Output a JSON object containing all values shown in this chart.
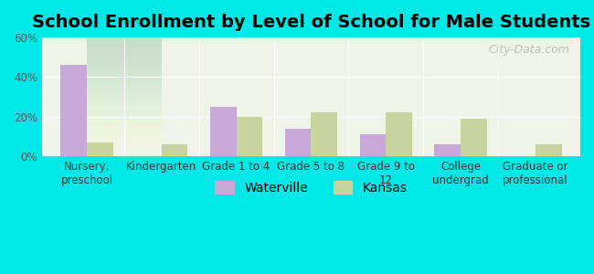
{
  "title": "School Enrollment by Level of School for Male Students",
  "categories": [
    "Nursery,\npreschool",
    "Kindergarten",
    "Grade 1 to 4",
    "Grade 5 to 8",
    "Grade 9 to\n12",
    "College\nundergrad",
    "Graduate or\nprofessional"
  ],
  "waterville": [
    46,
    0,
    25,
    14,
    11,
    6,
    0
  ],
  "kansas": [
    7,
    6,
    20,
    22,
    22,
    19,
    6
  ],
  "waterville_color": "#c8a8d8",
  "kansas_color": "#c8d4a0",
  "background_color": "#00e8e8",
  "plot_bg_top": "#f0f8e8",
  "plot_bg_bottom": "#e8f8f0",
  "ylim": [
    0,
    60
  ],
  "yticks": [
    0,
    20,
    40,
    60
  ],
  "ytick_labels": [
    "0%",
    "20%",
    "40%",
    "60%"
  ],
  "legend_labels": [
    "Waterville",
    "Kansas"
  ],
  "bar_width": 0.35,
  "title_fontsize": 14,
  "tick_fontsize": 8.5,
  "legend_fontsize": 10
}
